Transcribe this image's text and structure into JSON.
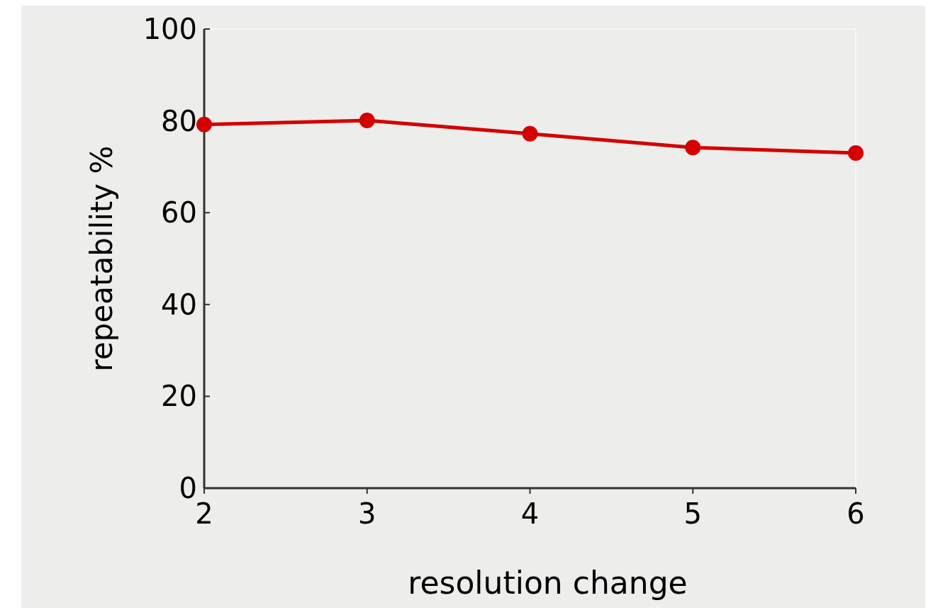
{
  "chart_data": {
    "type": "line",
    "xlabel": "resolution change",
    "ylabel": "repeatability %",
    "x": [
      2,
      3,
      4,
      5,
      6
    ],
    "series": [
      {
        "color": "#d40000",
        "values": [
          79.2,
          80.1,
          77.2,
          74.2,
          73.0
        ]
      }
    ],
    "xlim": [
      2,
      6
    ],
    "xticks": [
      2,
      3,
      4,
      5,
      6
    ],
    "ylim": [
      0,
      100
    ],
    "yticks": [
      0,
      20,
      40,
      60,
      80,
      100
    ],
    "marker": "circle",
    "line_style": "solid"
  }
}
